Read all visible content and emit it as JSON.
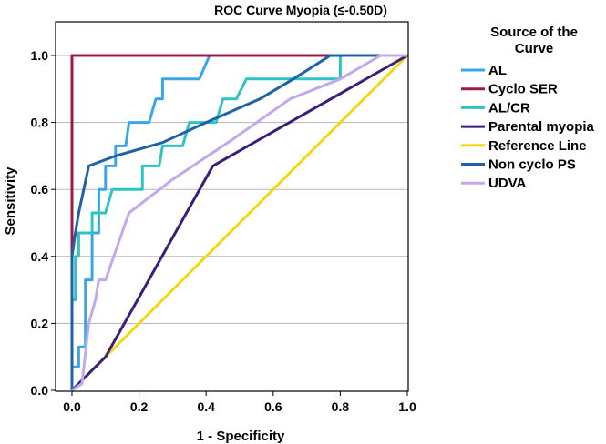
{
  "chart_data": {
    "type": "line",
    "title": "ROC Curve  Myopia (≤-0.50D)",
    "xlabel": "1 - Specificity",
    "ylabel": "Sensitivity",
    "xlim": [
      0,
      1.0
    ],
    "ylim": [
      0,
      1.0
    ],
    "x_ticks": [
      "0.0",
      "0.2",
      "0.4",
      "0.6",
      "0.8",
      "1.0"
    ],
    "y_ticks": [
      "0.0",
      "0.2",
      "0.4",
      "0.6",
      "0.8",
      "1.0"
    ],
    "grid": "horizontal",
    "legend_placement": "right",
    "legend_title": [
      "Source of the",
      "Curve"
    ],
    "series": [
      {
        "name": "AL",
        "color": "#3aa6e8",
        "points": [
          [
            0,
            0
          ],
          [
            0,
            0.07
          ],
          [
            0.02,
            0.07
          ],
          [
            0.02,
            0.13
          ],
          [
            0.04,
            0.13
          ],
          [
            0.04,
            0.33
          ],
          [
            0.06,
            0.33
          ],
          [
            0.06,
            0.47
          ],
          [
            0.08,
            0.47
          ],
          [
            0.08,
            0.6
          ],
          [
            0.1,
            0.6
          ],
          [
            0.1,
            0.67
          ],
          [
            0.13,
            0.67
          ],
          [
            0.13,
            0.73
          ],
          [
            0.16,
            0.73
          ],
          [
            0.17,
            0.8
          ],
          [
            0.23,
            0.8
          ],
          [
            0.25,
            0.87
          ],
          [
            0.27,
            0.87
          ],
          [
            0.27,
            0.93
          ],
          [
            0.38,
            0.93
          ],
          [
            0.41,
            1.0
          ],
          [
            1.0,
            1.0
          ]
        ]
      },
      {
        "name": "Cyclo SER",
        "color": "#9b1b4a",
        "points": [
          [
            0,
            0
          ],
          [
            0,
            1.0
          ],
          [
            1.0,
            1.0
          ]
        ]
      },
      {
        "name": "AL/CR",
        "color": "#2ec4c4",
        "points": [
          [
            0,
            0
          ],
          [
            0,
            0.27
          ],
          [
            0.01,
            0.27
          ],
          [
            0.01,
            0.4
          ],
          [
            0.02,
            0.4
          ],
          [
            0.02,
            0.47
          ],
          [
            0.06,
            0.47
          ],
          [
            0.06,
            0.53
          ],
          [
            0.1,
            0.53
          ],
          [
            0.12,
            0.6
          ],
          [
            0.21,
            0.6
          ],
          [
            0.21,
            0.67
          ],
          [
            0.26,
            0.67
          ],
          [
            0.27,
            0.73
          ],
          [
            0.33,
            0.73
          ],
          [
            0.35,
            0.8
          ],
          [
            0.43,
            0.8
          ],
          [
            0.45,
            0.87
          ],
          [
            0.49,
            0.87
          ],
          [
            0.52,
            0.93
          ],
          [
            0.8,
            0.93
          ],
          [
            0.8,
            1.0
          ],
          [
            1.0,
            1.0
          ]
        ]
      },
      {
        "name": "Parental myopia",
        "color": "#3a1f7a",
        "points": [
          [
            0,
            0
          ],
          [
            0.1,
            0.1
          ],
          [
            0.42,
            0.67
          ],
          [
            1.0,
            1.0
          ]
        ]
      },
      {
        "name": "Reference Line",
        "color": "#f0d816",
        "points": [
          [
            0,
            0
          ],
          [
            1.0,
            1.0
          ]
        ]
      },
      {
        "name": "Non cyclo PS",
        "color": "#1f62a8",
        "points": [
          [
            0,
            0
          ],
          [
            0,
            0.4
          ],
          [
            0.01,
            0.47
          ],
          [
            0.02,
            0.53
          ],
          [
            0.05,
            0.67
          ],
          [
            0.13,
            0.7
          ],
          [
            0.27,
            0.74
          ],
          [
            0.4,
            0.8
          ],
          [
            0.56,
            0.87
          ],
          [
            0.66,
            0.93
          ],
          [
            0.77,
            1.0
          ],
          [
            1.0,
            1.0
          ]
        ]
      },
      {
        "name": "UDVA",
        "color": "#c4a8ee",
        "points": [
          [
            0,
            0
          ],
          [
            0.03,
            0.02
          ],
          [
            0.05,
            0.2
          ],
          [
            0.07,
            0.27
          ],
          [
            0.08,
            0.33
          ],
          [
            0.1,
            0.33
          ],
          [
            0.17,
            0.53
          ],
          [
            0.3,
            0.63
          ],
          [
            0.48,
            0.75
          ],
          [
            0.65,
            0.87
          ],
          [
            0.8,
            0.93
          ],
          [
            0.92,
            1.0
          ],
          [
            1.0,
            1.0
          ]
        ]
      }
    ]
  }
}
